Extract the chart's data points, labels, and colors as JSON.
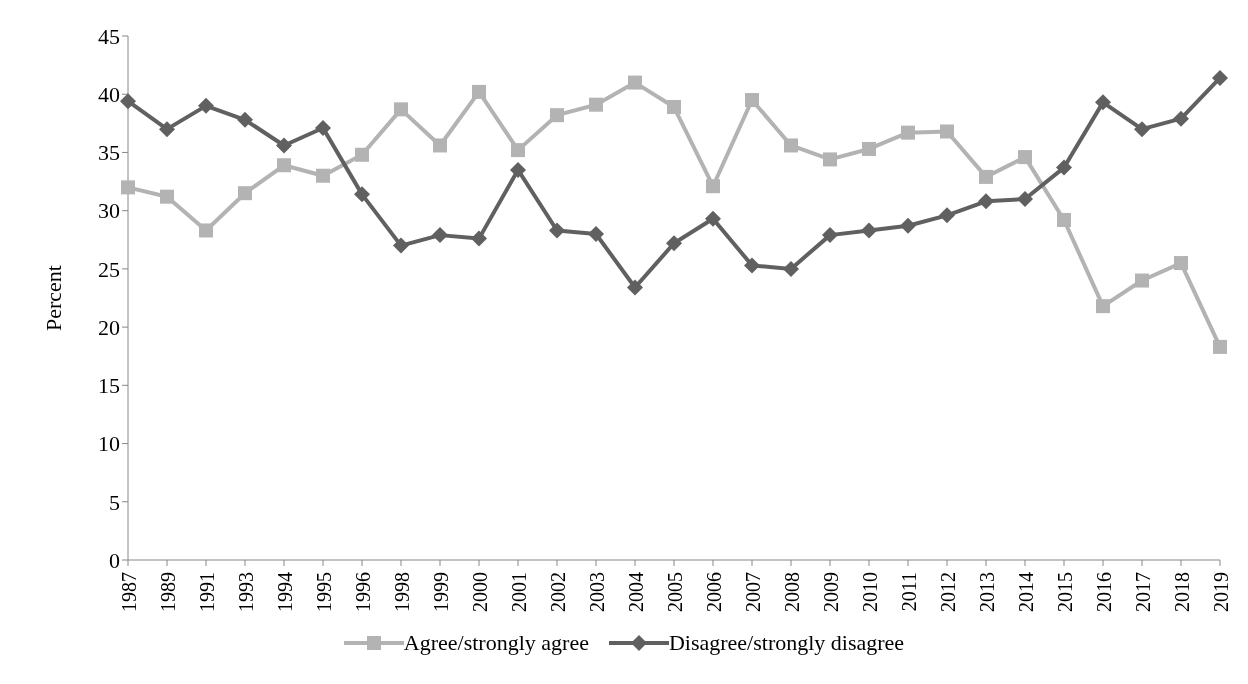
{
  "chart_data": {
    "type": "line",
    "ylabel": "Percent",
    "categories": [
      "1987",
      "1989",
      "1991",
      "1993",
      "1994",
      "1995",
      "1996",
      "1998",
      "1999",
      "2000",
      "2001",
      "2002",
      "2003",
      "2004",
      "2005",
      "2006",
      "2007",
      "2008",
      "2009",
      "2010",
      "2011",
      "2012",
      "2013",
      "2014",
      "2015",
      "2016",
      "2017",
      "2018",
      "2019"
    ],
    "series": [
      {
        "name": "Agree/strongly agree",
        "color": "#b3b3b3",
        "marker": "square",
        "values": [
          32.0,
          31.2,
          28.3,
          31.5,
          33.9,
          33.0,
          34.8,
          38.7,
          35.6,
          40.2,
          35.2,
          38.2,
          39.1,
          41.0,
          38.9,
          32.1,
          39.5,
          35.6,
          34.4,
          35.3,
          36.7,
          36.8,
          32.9,
          34.6,
          29.2,
          21.8,
          24.0,
          25.5,
          18.3
        ]
      },
      {
        "name": "Disagree/strongly disagree",
        "color": "#606060",
        "marker": "diamond",
        "values": [
          39.4,
          37.0,
          39.0,
          37.8,
          35.6,
          37.1,
          31.4,
          27.0,
          27.9,
          27.6,
          33.5,
          28.3,
          28.0,
          23.4,
          27.2,
          29.3,
          25.3,
          25.0,
          27.9,
          28.3,
          28.7,
          29.6,
          30.8,
          31.0,
          33.7,
          39.3,
          37.0,
          37.9,
          41.4
        ]
      }
    ],
    "ylim": [
      0,
      45
    ],
    "yticks": [
      0,
      5,
      10,
      15,
      20,
      25,
      30,
      35,
      40,
      45
    ],
    "grid": false,
    "legend": "bottom"
  }
}
